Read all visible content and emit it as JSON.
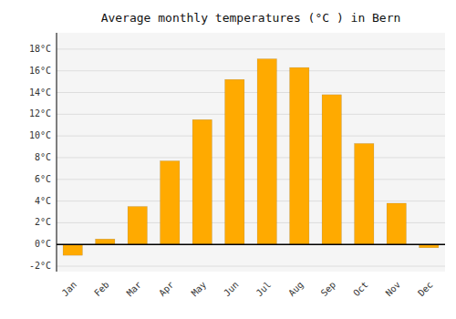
{
  "chart_data": {
    "type": "bar",
    "title": "Average monthly temperatures (°C ) in Bern",
    "categories": [
      "Jan",
      "Feb",
      "Mar",
      "Apr",
      "May",
      "Jun",
      "Jul",
      "Aug",
      "Sep",
      "Oct",
      "Nov",
      "Dec"
    ],
    "values": [
      -1.0,
      0.5,
      3.5,
      7.7,
      11.5,
      15.2,
      17.1,
      16.3,
      13.8,
      9.3,
      3.8,
      -0.3
    ],
    "color": "#FFAA00",
    "ylim": [
      -2.5,
      19.5
    ],
    "yticks": [
      {
        "value": -2,
        "label": "-2°C"
      },
      {
        "value": 0,
        "label": "0°C"
      },
      {
        "value": 2,
        "label": "2°C"
      },
      {
        "value": 4,
        "label": "4°C"
      },
      {
        "value": 6,
        "label": "6°C"
      },
      {
        "value": 8,
        "label": "8°C"
      },
      {
        "value": 10,
        "label": "10°C"
      },
      {
        "value": 12,
        "label": "12°C"
      },
      {
        "value": 14,
        "label": "14°C"
      },
      {
        "value": 16,
        "label": "16°C"
      },
      {
        "value": 18,
        "label": "18°C"
      }
    ],
    "grid": true
  }
}
